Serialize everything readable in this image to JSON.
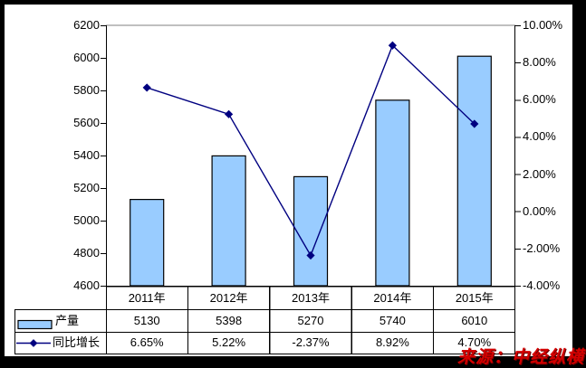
{
  "chart_data": {
    "type": "bar+line",
    "categories": [
      "2011年",
      "2012年",
      "2013年",
      "2014年",
      "2015年"
    ],
    "series": [
      {
        "name": "产量",
        "type": "bar",
        "axis": "left",
        "values": [
          5130,
          5398,
          5270,
          5740,
          6010
        ],
        "color": "#99CCFF",
        "border_color": "#000000"
      },
      {
        "name": "同比增长",
        "type": "line",
        "axis": "right",
        "values": [
          6.65,
          5.22,
          -2.37,
          8.92,
          4.7
        ],
        "color": "#000080",
        "marker": "diamond"
      }
    ],
    "left_axis": {
      "min": 4600,
      "max": 6200,
      "step": 200,
      "tick_labels": [
        "6200",
        "6000",
        "5800",
        "5600",
        "5400",
        "5200",
        "5000",
        "4800",
        "4600"
      ]
    },
    "right_axis": {
      "min": -4,
      "max": 10,
      "step": 2,
      "tick_labels": [
        "10.00%",
        "8.00%",
        "6.00%",
        "4.00%",
        "2.00%",
        "0.00%",
        "-2.00%",
        "-4.00%"
      ]
    },
    "data_table": {
      "rows": [
        {
          "label": "产量",
          "cells": [
            "5130",
            "5398",
            "5270",
            "5740",
            "6010"
          ]
        },
        {
          "label": "同比增长",
          "cells": [
            "6.65%",
            "5.22%",
            "-2.37%",
            "8.92%",
            "4.70%"
          ]
        }
      ]
    },
    "grid": false,
    "legend_position": "data-table-left"
  },
  "watermark": {
    "text": "来源：中经纵横"
  },
  "colors": {
    "bar_fill": "#99CCFF",
    "bar_border": "#000000",
    "line": "#000080",
    "axis": "#000000",
    "plot_border_top": "#808080",
    "frame": "#000000",
    "text": "#000000",
    "watermark": "#D40000"
  }
}
